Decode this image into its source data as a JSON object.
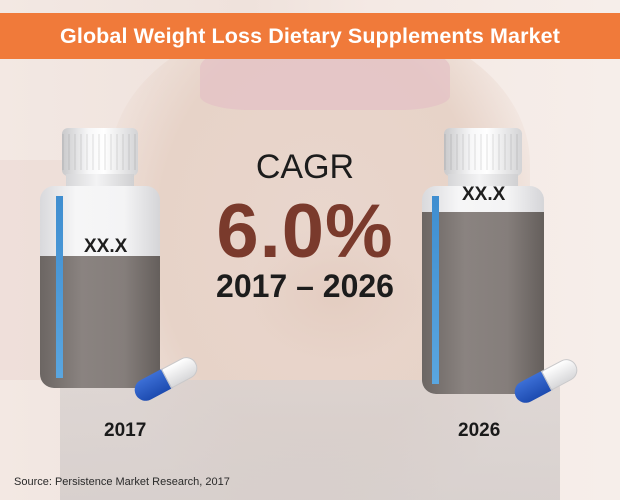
{
  "header": {
    "title": "Global Weight Loss Dietary Supplements Market",
    "banner_color": "#f07a3a"
  },
  "cagr": {
    "label": "CAGR",
    "value": "6.0%",
    "period": "2017 – 2026",
    "value_color": "#7a3a2c"
  },
  "bottles": [
    {
      "year": "2017",
      "value_label": "XX.X"
    },
    {
      "year": "2026",
      "value_label": "XX.X"
    }
  ],
  "footer": {
    "source": "Source: Persistence Market Research, 2017"
  },
  "colors": {
    "bottle_fill": "#857e7b",
    "bottle_stripe": "#3f8ed0",
    "capsule_blue": "#1d4bb0"
  }
}
